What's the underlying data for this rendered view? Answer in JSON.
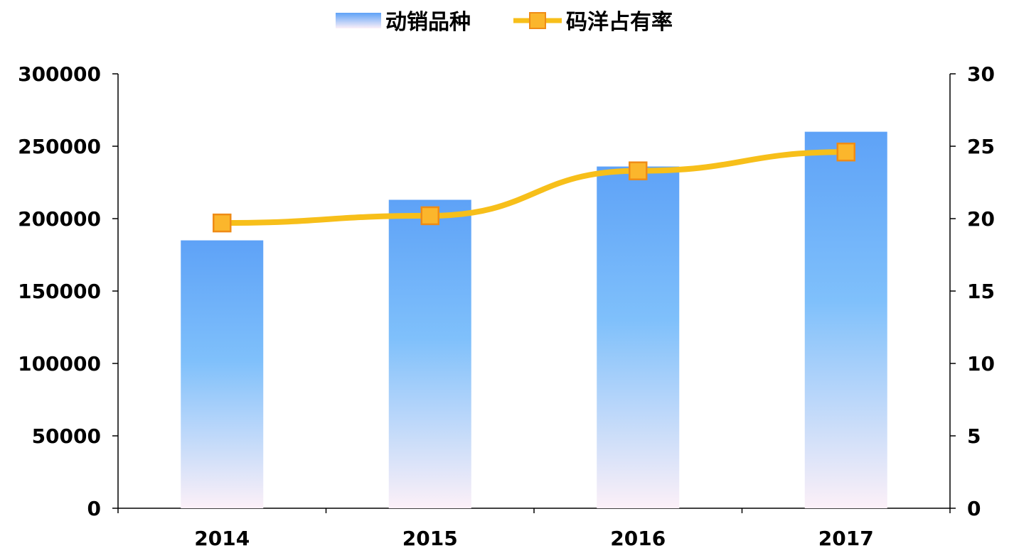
{
  "chart_data": {
    "type": "bar",
    "categories": [
      "2014",
      "2015",
      "2016",
      "2017"
    ],
    "series": [
      {
        "name": "动销品种",
        "type": "bar",
        "axis": "left",
        "values": [
          185000,
          213000,
          236000,
          260000
        ]
      },
      {
        "name": "码洋占有率",
        "type": "line",
        "axis": "right",
        "values": [
          19.7,
          20.2,
          23.3,
          24.6
        ]
      }
    ],
    "y_left": {
      "ylim": [
        0,
        300000
      ],
      "ticks": [
        "0",
        "50000",
        "100000",
        "150000",
        "200000",
        "250000",
        "300000"
      ]
    },
    "y_right": {
      "ylim": [
        0,
        30
      ],
      "ticks": [
        "0",
        "5",
        "10",
        "15",
        "20",
        "25",
        "30"
      ]
    },
    "title": "",
    "xlabel": "",
    "ylabel": "",
    "grid": false,
    "legend": "top-center",
    "colors": {
      "bar_top": "#5ea2f7",
      "bar_mid": "#7fc0fb",
      "bar_bottom": "#fcf0f8",
      "line": "#f7bf1a",
      "marker_fill": "#fbb62c",
      "marker_edge": "#ef8b16",
      "axis": "#000000"
    }
  }
}
